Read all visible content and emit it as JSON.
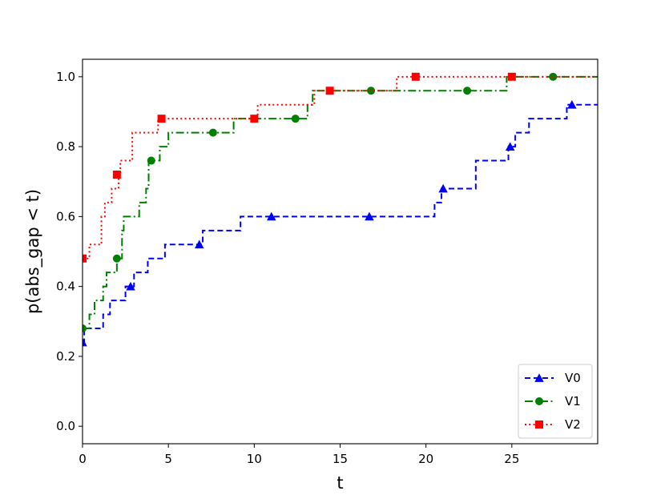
{
  "chart_data": {
    "type": "line",
    "xlabel": "t",
    "ylabel": "p(abs_gap < t)",
    "xlim": [
      0,
      30
    ],
    "ylim": [
      -0.05,
      1.05
    ],
    "xticks": [
      0,
      5,
      10,
      15,
      20,
      25
    ],
    "yticks": [
      0.0,
      0.2,
      0.4,
      0.6,
      0.8,
      1.0
    ],
    "grid": false,
    "legend_position": "bottom-right",
    "series": [
      {
        "name": "V0",
        "color": "#0000ff",
        "linestyle": "dashed",
        "marker": "triangle",
        "steps": [
          [
            0,
            0.24
          ],
          [
            0.1,
            0.28
          ],
          [
            1.2,
            0.32
          ],
          [
            1.6,
            0.36
          ],
          [
            2.5,
            0.4
          ],
          [
            3.0,
            0.44
          ],
          [
            3.8,
            0.48
          ],
          [
            4.8,
            0.52
          ],
          [
            7.0,
            0.56
          ],
          [
            9.2,
            0.6
          ],
          [
            20.5,
            0.64
          ],
          [
            20.9,
            0.68
          ],
          [
            22.9,
            0.76
          ],
          [
            24.8,
            0.8
          ],
          [
            25.2,
            0.84
          ],
          [
            26.0,
            0.88
          ],
          [
            28.2,
            0.92
          ],
          [
            30,
            0.92
          ]
        ],
        "markers": [
          [
            0,
            0.24
          ],
          [
            2.8,
            0.4
          ],
          [
            6.8,
            0.52
          ],
          [
            11.0,
            0.6
          ],
          [
            16.7,
            0.6
          ],
          [
            21.0,
            0.68
          ],
          [
            24.9,
            0.8
          ],
          [
            28.5,
            0.92
          ]
        ]
      },
      {
        "name": "V1",
        "color": "#008000",
        "linestyle": "dashdot",
        "marker": "circle",
        "steps": [
          [
            0,
            0.28
          ],
          [
            0.4,
            0.32
          ],
          [
            0.7,
            0.36
          ],
          [
            1.2,
            0.4
          ],
          [
            1.4,
            0.44
          ],
          [
            2.0,
            0.48
          ],
          [
            2.3,
            0.56
          ],
          [
            2.4,
            0.6
          ],
          [
            3.3,
            0.64
          ],
          [
            3.7,
            0.68
          ],
          [
            3.85,
            0.76
          ],
          [
            4.5,
            0.8
          ],
          [
            5.0,
            0.84
          ],
          [
            8.8,
            0.88
          ],
          [
            13.1,
            0.92
          ],
          [
            13.4,
            0.96
          ],
          [
            24.7,
            1.0
          ],
          [
            30,
            1.0
          ]
        ],
        "markers": [
          [
            0,
            0.28
          ],
          [
            2.0,
            0.48
          ],
          [
            4.0,
            0.76
          ],
          [
            7.6,
            0.84
          ],
          [
            12.4,
            0.88
          ],
          [
            16.8,
            0.96
          ],
          [
            22.4,
            0.96
          ],
          [
            27.4,
            1.0
          ]
        ]
      },
      {
        "name": "V2",
        "color": "#ff0000",
        "linestyle": "dotted",
        "marker": "square",
        "steps": [
          [
            0,
            0.48
          ],
          [
            0.4,
            0.52
          ],
          [
            1.1,
            0.6
          ],
          [
            1.3,
            0.64
          ],
          [
            1.7,
            0.68
          ],
          [
            2.1,
            0.72
          ],
          [
            2.2,
            0.76
          ],
          [
            2.9,
            0.84
          ],
          [
            4.4,
            0.88
          ],
          [
            10.2,
            0.92
          ],
          [
            13.5,
            0.96
          ],
          [
            18.3,
            1.0
          ],
          [
            30,
            1.0
          ]
        ],
        "markers": [
          [
            0,
            0.48
          ],
          [
            2.0,
            0.72
          ],
          [
            4.6,
            0.88
          ],
          [
            10.0,
            0.88
          ],
          [
            14.4,
            0.96
          ],
          [
            19.4,
            1.0
          ],
          [
            25.0,
            1.0
          ]
        ]
      }
    ]
  }
}
